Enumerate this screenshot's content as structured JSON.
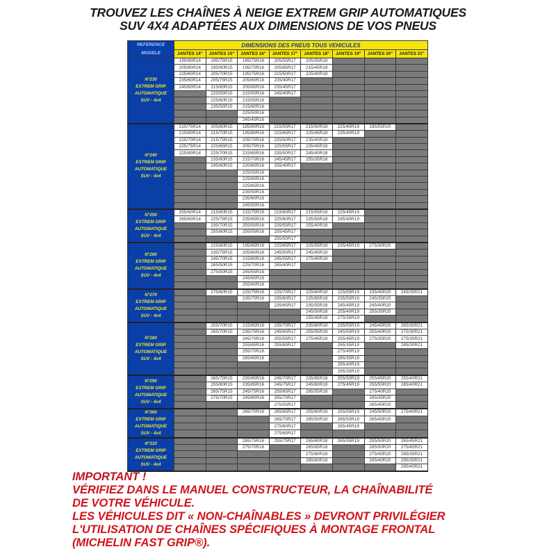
{
  "title": {
    "line1": "TROUVEZ LES CHAÎNES À NEIGE EXTREM GRIP AUTOMATIQUES",
    "line2": "SUV 4X4 ADAPTÉES AUX DIMENSIONS DE VOS PNEUS"
  },
  "table": {
    "reference_header": [
      "REFERENCE",
      "MODELE"
    ],
    "dimensions_header": "DIMENSIONS DES PNEUS TOUS VEHICULES",
    "columns": [
      "JANTES 14\"",
      "JANTES 15\"",
      "JANTES 16\"",
      "JANTES 17\"",
      "JANTES 18\"",
      "JANTES 19\"",
      "JANTES 20\"",
      "JANTES 21\""
    ],
    "colors": {
      "header": "#f5e50c",
      "label_bg": "#0a3fa8",
      "label_text": "#e6e640",
      "empty_cell": "#7b7b7b"
    },
    "blocks": [
      {
        "model": [
          "N°230",
          "EXTREM GRIP",
          "AUTOMATIQUE",
          "SUV - 4x4"
        ],
        "rows": 10,
        "cols": [
          [
            "195/80R14",
            "205/80R14",
            "225/60R14",
            "235/60R14",
            "245/60R14"
          ],
          [
            "195/75R15",
            "195/80R15",
            "205/70R15",
            "205/75R15",
            "215/65R15",
            "225/55R15",
            "225/60R15",
            "235/55R15"
          ],
          [
            "185/75R16",
            "195/70R16",
            "195/75R16",
            "205/60R16",
            "205/65R16",
            "215/50R16",
            "215/55R16",
            "215/60R16",
            "225/50R16",
            "245/45R16"
          ],
          [
            "205/55R17",
            "205/65R17",
            "215/50R17",
            "235/40R17",
            "235/45R17",
            "245/40R17"
          ],
          [
            "205/55R18",
            "215/45R18",
            "225/40R18"
          ],
          [],
          [],
          []
        ]
      },
      {
        "model": [
          "N°240",
          "EXTREM GRIP",
          "AUTOMATIQUE",
          "SUV - 4x4"
        ],
        "rows": 13,
        "cols": [
          [
            "215/75R14",
            "215/80R14",
            "225/70R14",
            "225/75R14",
            "225/80R14"
          ],
          [
            "205/80R15",
            "215/70R15",
            "215/75R15",
            "225/65R15",
            "225/70R15",
            "235/60R15",
            "245/60R15"
          ],
          [
            "185/80R16",
            "195/80R16",
            "205/70R16",
            "205/75R16",
            "215/65R16",
            "215/70R16",
            "220/60R16",
            "225/55R16",
            "225/60R16",
            "225/65R16",
            "235/50R16",
            "235/60R16",
            "245/50R16"
          ],
          [
            "215/55R17",
            "215/65R17",
            "225/50R17",
            "225/55R17",
            "235/50R17",
            "245/45R17",
            "255/40R17"
          ],
          [
            "215/50R18",
            "225/45R18",
            "235/40R18",
            "235/45R18",
            "245/40R18",
            "255/35R18"
          ],
          [
            "225/40R19",
            "235/40R19"
          ],
          [
            "195/55R20"
          ],
          []
        ]
      },
      {
        "model": [
          "N°250",
          "EXTREM GRIP",
          "AUTOMATIQUE",
          "SUV - 4x4"
        ],
        "rows": 5,
        "cols": [
          [
            "255/60R14",
            "265/60R14"
          ],
          [
            "215/80R15",
            "225/75R15",
            "235/70R15",
            "255/60R15"
          ],
          [
            "215/75R16",
            "235/65R16",
            "255/50R16",
            "255/55R16"
          ],
          [
            "215/60R17",
            "225/60R17",
            "235/55R17",
            "255/45R17",
            "255/50R17"
          ],
          [
            "215/55R18",
            "235/50R18",
            "255/40R18"
          ],
          [
            "225/45R19",
            "245/40R19"
          ],
          [],
          []
        ]
      },
      {
        "model": [
          "N°260",
          "EXTREM GRIP",
          "AUTOMATIQUE",
          "SUV - 4x4"
        ],
        "rows": 7,
        "cols": [
          [],
          [
            "225/80R15",
            "235/75R15",
            "245/70R15",
            "265/50R15",
            "275/50R15"
          ],
          [
            "195/85R16",
            "205/80R16",
            "215/80R16",
            "225/70R16",
            "245/55R16",
            "245/60R16",
            "255/60R16"
          ],
          [
            "225/65R17",
            "245/50R17",
            "245/55R17",
            "265/40R17"
          ],
          [
            "225/55R18",
            "245/45R18",
            "275/40R18"
          ],
          [
            "235/45R19"
          ],
          [
            "275/30R20"
          ],
          []
        ]
      },
      {
        "model": [
          "N°270",
          "EXTREM GRIP",
          "AUTOMATIQUE",
          "SUV - 4x4"
        ],
        "rows": 5,
        "cols": [
          [],
          [
            "275/60R15"
          ],
          [
            "225/75R16",
            "235/70R16"
          ],
          [
            "225/70R17",
            "235/60R17",
            "235/65R17"
          ],
          [
            "225/60R18",
            "225/65R18",
            "235/55R18",
            "245/50R18",
            "255/45R18"
          ],
          [
            "225/55R19",
            "235/50R19",
            "245/45R19",
            "255/40R19",
            "275/35R19"
          ],
          [
            "235/45R20",
            "245/35R20",
            "245/40R20",
            "255/35R20"
          ],
          [
            "245/35R21"
          ]
        ]
      },
      {
        "model": [
          "N°280",
          "EXTREM GRIP",
          "AUTOMATIQUE",
          "SUV - 4x4"
        ],
        "rows": 8,
        "cols": [
          [],
          [
            "255/70R15",
            "265/70R15"
          ],
          [
            "215/85R16",
            "235/75R16",
            "245/70R16",
            "255/65R16",
            "255/70R16",
            "265/65R16"
          ],
          [
            "235/70R17",
            "245/65R17",
            "255/55R17",
            "255/60R17"
          ],
          [
            "235/60R18",
            "255/55R18",
            "275/45R18"
          ],
          [
            "235/55R19",
            "245/50R19",
            "255/45R19",
            "265/35R19",
            "275/40R19",
            "285/35R19",
            "285/40R19",
            "295/35R19"
          ],
          [
            "245/45R20",
            "255/40R20",
            "275/35R20"
          ],
          [
            "265/35R21",
            "275/30R21",
            "275/35R21",
            "285/30R21"
          ]
        ]
      },
      {
        "model": [
          "N°290",
          "EXTREM GRIP",
          "AUTOMATIQUE",
          "SUV - 4x4"
        ],
        "rows": 5,
        "cols": [
          [],
          [
            "265/75R15",
            "255/80R15",
            "265/75R15",
            "275/70R15"
          ],
          [
            "235/80R16",
            "235/85R16",
            "245/75R16",
            "245/80R16"
          ],
          [
            "245/70R17",
            "245/75R17",
            "255/65R17",
            "255/70R17",
            "275/55R17"
          ],
          [
            "235/65R18",
            "245/60R18",
            "285/55R18"
          ],
          [
            "255/50R19",
            "275/45R19"
          ],
          [
            "255/45R20",
            "255/55R20",
            "275/40R20",
            "285/35R20",
            "285/45R20"
          ],
          [
            "255/40R21",
            "285/40R21"
          ]
        ]
      },
      {
        "model": [
          "N°300",
          "EXTREM GRIP",
          "AUTOMATIQUE",
          "SUV - 4x4"
        ],
        "rows": 4,
        "cols": [
          [],
          [],
          [
            "265/70R16"
          ],
          [
            "265/65R17",
            "265/70R17",
            "275/60R17",
            "275/65R17"
          ],
          [
            "255/60R18",
            "285/50R18"
          ],
          [
            "255/55R19",
            "265/50R19",
            "285/45R19"
          ],
          [
            "245/50R20",
            "265/45R20"
          ],
          [
            "275/40R21"
          ]
        ]
      },
      {
        "model": [
          "N°310",
          "EXTREM GRIP",
          "AUTOMATIQUE",
          "SUV - 4x4"
        ],
        "rows": 5,
        "cols": [
          [],
          [],
          [
            "265/75R16",
            "275/70R16"
          ],
          [
            "255/75R17"
          ],
          [
            "265/60R18",
            "265/65R18",
            "275/60R18",
            "285/60R18"
          ],
          [
            "265/55R19"
          ],
          [
            "255/50R20",
            "265/50R20",
            "275/45R20",
            "295/40R20"
          ],
          [
            "265/45R21",
            "275/45R21",
            "285/35R21",
            "295/35R21",
            "295/40R21"
          ]
        ]
      }
    ]
  },
  "notes": {
    "important": "IMPORTANT !",
    "lines": [
      "VÉRIFIEZ DANS LE MANUEL CONSTRUCTEUR, LA CHAÎNABILITÉ",
      "DE VOTRE VÉHICULE.",
      "LES VÉHICULES DIT « NON-CHAÎNABLES » DEVRONT PRIVILÉGIER",
      "L'UTILISATION DE CHAÎNES SPÉCIFIQUES À MONTAGE FRONTAL",
      "(MICHELIN FAST GRIP®)."
    ]
  }
}
